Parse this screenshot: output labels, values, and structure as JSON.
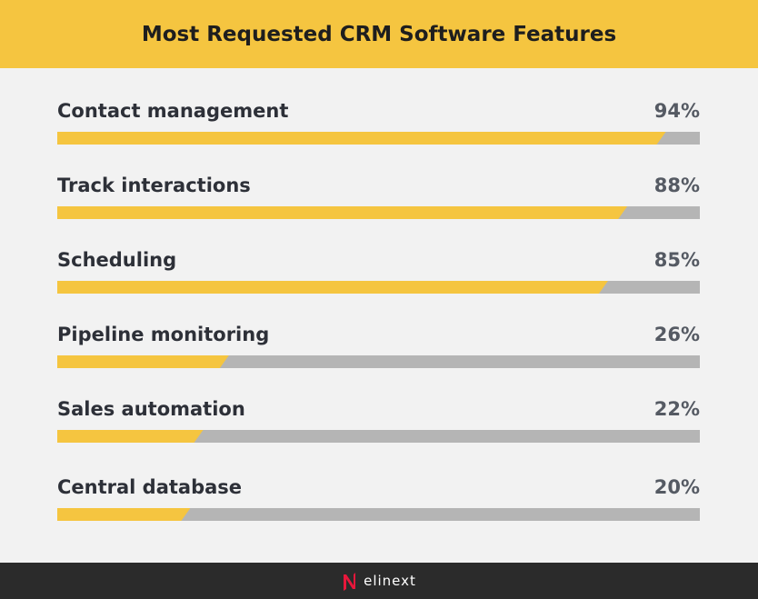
{
  "chart_data": {
    "type": "bar",
    "title": "Most Requested CRM Software Features",
    "categories": [
      "Contact management",
      "Track interactions",
      "Scheduling",
      "Pipeline monitoring",
      "Sales automation",
      "Central database"
    ],
    "values": [
      94,
      88,
      85,
      26,
      22,
      20
    ],
    "value_labels": [
      "94%",
      "88%",
      "85%",
      "26%",
      "22%",
      "20%"
    ],
    "xlim": [
      0,
      100
    ],
    "colors": {
      "fill": "#f5c540",
      "track": "#b5b5b5"
    }
  },
  "footer": {
    "brand": "elinext",
    "logo_color": "#e8173b"
  }
}
